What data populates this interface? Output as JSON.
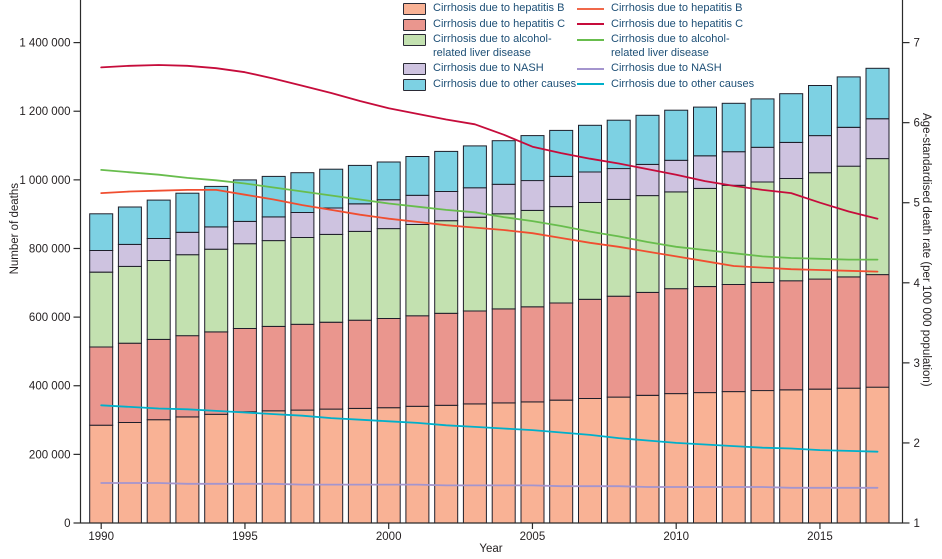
{
  "figure": {
    "left_axis_title": "Number of deaths",
    "right_axis_title": "Age-standardised death rate (per 100 000 population)",
    "x_axis_title": "Year"
  },
  "colors": {
    "hep_b_fill": "#f9b295",
    "hep_c_fill": "#ea968e",
    "alcohol_fill": "#c3e1b0",
    "nash_fill": "#cec3e0",
    "other_fill": "#7dd1e3",
    "bar_stroke": "#1e1e2a",
    "hep_b_line": "#f04e30",
    "hep_c_line": "#c60c3b",
    "alcohol_line": "#68bd4d",
    "nash_line": "#a495ce",
    "other_line": "#00b0ca",
    "axis": "#2b2b2b",
    "tick_text": "#231f20",
    "legend_text": "#1d4f76"
  },
  "legend": {
    "bar_items": [
      {
        "label": "Cirrhosis due to hepatitis B",
        "color": "#f9b295"
      },
      {
        "label": "Cirrhosis due to hepatitis C",
        "color": "#ea968e"
      },
      {
        "label": "Cirrhosis due to alcohol-\nrelated liver disease",
        "color": "#c3e1b0"
      },
      {
        "label": "Cirrhosis due to NASH",
        "color": "#cec3e0"
      },
      {
        "label": "Cirrhosis due to other causes",
        "color": "#7dd1e3"
      }
    ],
    "line_items": [
      {
        "label": "Cirrhosis due to hepatitis B",
        "color": "#f0684a"
      },
      {
        "label": "Cirrhosis due to hepatitis C",
        "color": "#c60c3b"
      },
      {
        "label": "Cirrhosis due to alcohol-\nrelated liver disease",
        "color": "#68bd4d"
      },
      {
        "label": "Cirrhosis due to NASH",
        "color": "#a495ce"
      },
      {
        "label": "Cirrhosis due to other causes",
        "color": "#00b0ca"
      }
    ]
  },
  "chart_data": {
    "type": "combo: stacked bar (left axis) + line (right axis)",
    "x": [
      1990,
      1991,
      1992,
      1993,
      1994,
      1995,
      1996,
      1997,
      1998,
      1999,
      2000,
      2001,
      2002,
      2003,
      2004,
      2005,
      2006,
      2007,
      2008,
      2009,
      2010,
      2011,
      2012,
      2013,
      2014,
      2015,
      2016,
      2017
    ],
    "x_tick_years": [
      1990,
      1995,
      2000,
      2005,
      2010,
      2015
    ],
    "x_tick_labels": [
      "1990",
      "1995",
      "2000",
      "2005",
      "2010",
      "2015"
    ],
    "left_axis": {
      "title": "Number of deaths",
      "range": [
        0,
        1400000
      ],
      "ticks": [
        0,
        200000,
        400000,
        600000,
        800000,
        1000000,
        1200000,
        1400000
      ],
      "tick_labels": [
        "0",
        "200 000",
        "400 000",
        "600 000",
        "800 000",
        "1 000 000",
        "1 200 000",
        "1 400 000"
      ]
    },
    "right_axis": {
      "title": "Age-standardised death rate (per 100 000 population)",
      "range": [
        1,
        7
      ],
      "ticks": [
        1,
        2,
        3,
        4,
        5,
        6,
        7
      ],
      "tick_labels": [
        "1",
        "2",
        "3",
        "4",
        "5",
        "6",
        "7"
      ]
    },
    "bar_series": [
      {
        "name": "Cirrhosis due to hepatitis B",
        "color": "#f9b295",
        "values": [
          285000,
          293000,
          301000,
          309000,
          317000,
          324000,
          327000,
          329000,
          332000,
          334000,
          336000,
          340000,
          343000,
          347000,
          350000,
          353000,
          358000,
          363000,
          367000,
          372000,
          377000,
          380000,
          383000,
          386000,
          388000,
          390000,
          393000,
          396000
        ]
      },
      {
        "name": "Cirrhosis due to hepatitis C",
        "color": "#ea968e",
        "values": [
          228000,
          231000,
          234000,
          237000,
          240000,
          243000,
          246000,
          250000,
          253000,
          257000,
          260000,
          264000,
          268000,
          271000,
          274000,
          277000,
          283000,
          289000,
          294000,
          300000,
          306000,
          309000,
          312000,
          315000,
          318000,
          321000,
          324000,
          328000
        ]
      },
      {
        "name": "Cirrhosis due to alcohol-related liver disease",
        "color": "#c3e1b0",
        "values": [
          218000,
          224000,
          230000,
          236000,
          241000,
          247000,
          250000,
          253000,
          256000,
          259000,
          262000,
          266000,
          270000,
          273000,
          277000,
          281000,
          281000,
          282000,
          282000,
          282000,
          282000,
          286000,
          289000,
          293000,
          298000,
          310000,
          323000,
          338000
        ]
      },
      {
        "name": "Cirrhosis due to NASH",
        "color": "#cec3e0",
        "values": [
          63000,
          64000,
          64000,
          65000,
          65000,
          65000,
          69000,
          73000,
          77000,
          80000,
          84000,
          85000,
          85000,
          86000,
          86000,
          87000,
          88000,
          89000,
          90000,
          91000,
          92000,
          95000,
          98000,
          101000,
          105000,
          108000,
          113000,
          116000
        ]
      },
      {
        "name": "Cirrhosis due to other causes",
        "color": "#7dd1e3",
        "values": [
          107000,
          109000,
          112000,
          114000,
          118000,
          121000,
          118000,
          116000,
          113000,
          112000,
          110000,
          113000,
          117000,
          122000,
          127000,
          131000,
          134000,
          136000,
          141000,
          143000,
          146000,
          142000,
          141000,
          141000,
          142000,
          146000,
          147000,
          147000
        ]
      }
    ],
    "line_series": [
      {
        "name": "Cirrhosis due to hepatitis B",
        "color": "#f04e30",
        "values": [
          5.12,
          5.14,
          5.15,
          5.16,
          5.16,
          5.1,
          5.04,
          4.97,
          4.91,
          4.85,
          4.8,
          4.76,
          4.72,
          4.69,
          4.66,
          4.62,
          4.56,
          4.5,
          4.45,
          4.39,
          4.33,
          4.27,
          4.21,
          4.19,
          4.17,
          4.16,
          4.15,
          4.14
        ]
      },
      {
        "name": "Cirrhosis due to hepatitis C",
        "color": "#c60c3b",
        "values": [
          6.69,
          6.71,
          6.72,
          6.71,
          6.68,
          6.63,
          6.55,
          6.46,
          6.37,
          6.27,
          6.18,
          6.11,
          6.04,
          5.98,
          5.85,
          5.7,
          5.62,
          5.55,
          5.49,
          5.42,
          5.35,
          5.27,
          5.21,
          5.16,
          5.12,
          5.0,
          4.89,
          4.8
        ]
      },
      {
        "name": "Cirrhosis due to alcohol-related liver disease",
        "color": "#68bd4d",
        "values": [
          5.41,
          5.38,
          5.35,
          5.31,
          5.28,
          5.24,
          5.19,
          5.14,
          5.09,
          5.04,
          4.99,
          4.95,
          4.91,
          4.88,
          4.82,
          4.77,
          4.71,
          4.64,
          4.58,
          4.51,
          4.45,
          4.41,
          4.37,
          4.33,
          4.31,
          4.3,
          4.29,
          4.29
        ]
      },
      {
        "name": "Cirrhosis due to NASH",
        "color": "#a495ce",
        "values": [
          1.5,
          1.5,
          1.5,
          1.49,
          1.49,
          1.49,
          1.49,
          1.48,
          1.48,
          1.48,
          1.48,
          1.48,
          1.47,
          1.47,
          1.47,
          1.47,
          1.46,
          1.46,
          1.46,
          1.45,
          1.45,
          1.45,
          1.45,
          1.45,
          1.44,
          1.44,
          1.44,
          1.44
        ]
      },
      {
        "name": "Cirrhosis due to other causes",
        "color": "#00b0ca",
        "values": [
          2.47,
          2.45,
          2.43,
          2.42,
          2.4,
          2.38,
          2.36,
          2.34,
          2.31,
          2.29,
          2.27,
          2.25,
          2.22,
          2.2,
          2.18,
          2.16,
          2.13,
          2.1,
          2.06,
          2.03,
          2.0,
          1.98,
          1.96,
          1.94,
          1.93,
          1.91,
          1.9,
          1.89
        ]
      }
    ],
    "layout_hints": {
      "legend_position": "top-center",
      "grid": false,
      "bars_start_year": 1990,
      "bars_end_year": 2017
    }
  }
}
